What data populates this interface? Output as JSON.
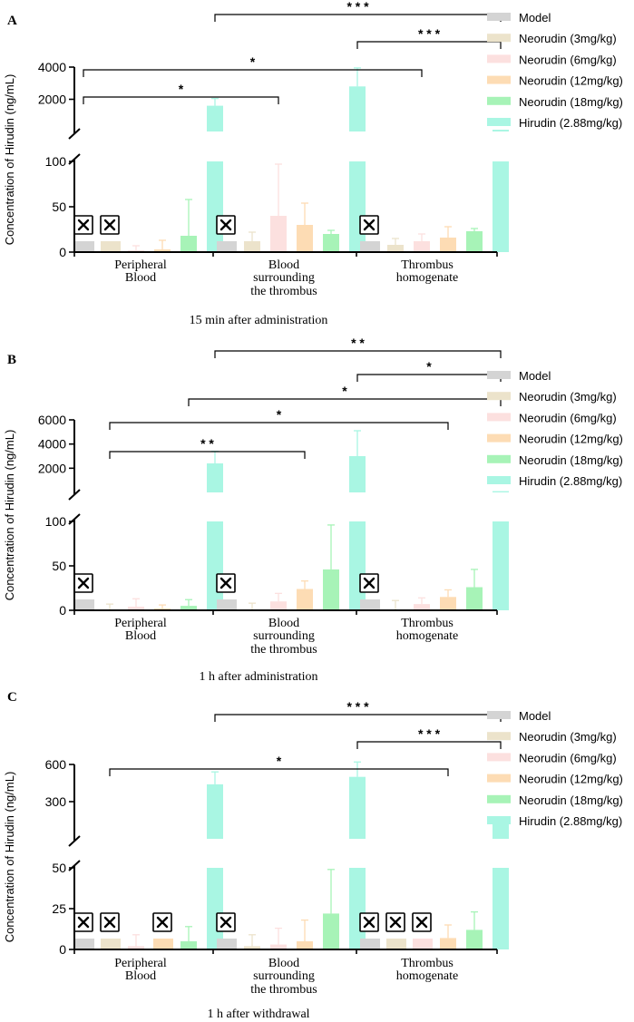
{
  "chart_data": [
    {
      "type": "bar",
      "panel_label": "A",
      "title": "15 min after administration",
      "ylabel": "Concentration of Hirudin  (ng/mL)",
      "categories": [
        "Peripheral|Blood",
        "Blood|surrounding|the thrombus",
        "Thrombus|homogenate"
      ],
      "lower_axis": {
        "range": [
          0,
          100
        ],
        "ticks": [
          0,
          50,
          100
        ]
      },
      "upper_axis": {
        "range": [
          0,
          4000
        ],
        "ticks": [
          2000,
          4000
        ]
      },
      "series": [
        {
          "name": "Model",
          "values": [
            null,
            null,
            null
          ],
          "errors": [
            0,
            0,
            0
          ]
        },
        {
          "name": "Neorudin (3mg/kg)",
          "values": [
            null,
            12,
            8
          ],
          "errors": [
            0,
            10,
            7
          ]
        },
        {
          "name": "Neorudin (6mg/kg)",
          "values": [
            2,
            40,
            12
          ],
          "errors": [
            5,
            57,
            8
          ]
        },
        {
          "name": "Neorudin (12mg/kg)",
          "values": [
            3,
            30,
            16
          ],
          "errors": [
            10,
            24,
            12
          ]
        },
        {
          "name": "Neorudin (18mg/kg)",
          "values": [
            18,
            20,
            23
          ],
          "errors": [
            40,
            4,
            3
          ]
        },
        {
          "name": "Hirudin (2.88mg/kg)",
          "values": [
            1600,
            2800,
            110
          ],
          "errors": [
            450,
            1150,
            0
          ]
        }
      ],
      "missing_markers": [
        [
          "Model",
          0
        ],
        [
          "Neorudin (3mg/kg)",
          0
        ],
        [
          "Model",
          1
        ],
        [
          "Model",
          2
        ]
      ],
      "significance": [
        {
          "from": "Model|0",
          "to": "Neorudin (6mg/kg)|1",
          "label": "*"
        },
        {
          "from": "Model|0",
          "to": "Neorudin (6mg/kg)|2",
          "label": "*"
        },
        {
          "from": "Hirudin (2.88mg/kg)|1",
          "to": "Hirudin (2.88mg/kg)|2",
          "label": "* * *"
        },
        {
          "from": "Hirudin (2.88mg/kg)|0",
          "to": "Hirudin (2.88mg/kg)|2",
          "label": "* * *"
        }
      ]
    },
    {
      "type": "bar",
      "panel_label": "B",
      "title": "1 h after administration",
      "ylabel": "Concentration of Hirudin  (ng/mL)",
      "categories": [
        "Peripheral|Blood",
        "Blood|surrounding|the thrombus",
        "Thrombus|homogenate"
      ],
      "lower_axis": {
        "range": [
          0,
          100
        ],
        "ticks": [
          0,
          50,
          100
        ]
      },
      "upper_axis": {
        "range": [
          0,
          6000
        ],
        "ticks": [
          2000,
          4000,
          6000
        ]
      },
      "series": [
        {
          "name": "Model",
          "values": [
            null,
            null,
            null
          ],
          "errors": [
            0,
            0,
            0
          ]
        },
        {
          "name": "Neorudin (3mg/kg)",
          "values": [
            1,
            1,
            1
          ],
          "errors": [
            6,
            7,
            10
          ]
        },
        {
          "name": "Neorudin (6mg/kg)",
          "values": [
            4,
            10,
            7
          ],
          "errors": [
            9,
            9,
            7
          ]
        },
        {
          "name": "Neorudin (12mg/kg)",
          "values": [
            2,
            24,
            15
          ],
          "errors": [
            4,
            9,
            8
          ]
        },
        {
          "name": "Neorudin (18mg/kg)",
          "values": [
            5,
            46,
            26
          ],
          "errors": [
            7,
            50,
            20
          ]
        },
        {
          "name": "Hirudin (2.88mg/kg)",
          "values": [
            2400,
            3000,
            105
          ],
          "errors": [
            1000,
            2100,
            0
          ]
        }
      ],
      "missing_markers": [
        [
          "Model",
          0
        ],
        [
          "Model",
          1
        ],
        [
          "Model",
          2
        ]
      ],
      "significance": [
        {
          "from": "Neorudin (3mg/kg)|0",
          "to": "Neorudin (12mg/kg)|1",
          "label": "* *"
        },
        {
          "from": "Neorudin (3mg/kg)|0",
          "to": "Neorudin (12mg/kg)|2",
          "label": "*"
        },
        {
          "from": "Neorudin (18mg/kg)|0",
          "to": "Hirudin (2.88mg/kg)|2",
          "label": "*"
        },
        {
          "from": "Hirudin (2.88mg/kg)|1",
          "to": "Hirudin (2.88mg/kg)|2",
          "label": "*"
        },
        {
          "from": "Hirudin (2.88mg/kg)|0",
          "to": "Hirudin (2.88mg/kg)|2",
          "label": "* *"
        }
      ]
    },
    {
      "type": "bar",
      "panel_label": "C",
      "title": "1 h after withdrawal",
      "ylabel": "Concentration of Hirudin  (ng/mL)",
      "categories": [
        "Peripheral|Blood",
        "Blood|surrounding|the thrombus",
        "Thrombus|homogenate"
      ],
      "lower_axis": {
        "range": [
          0,
          50
        ],
        "ticks": [
          0,
          25,
          50
        ]
      },
      "upper_axis": {
        "range": [
          0,
          600
        ],
        "ticks": [
          300,
          600
        ]
      },
      "series": [
        {
          "name": "Model",
          "values": [
            null,
            null,
            null
          ],
          "errors": [
            0,
            0,
            0
          ]
        },
        {
          "name": "Neorudin (3mg/kg)",
          "values": [
            null,
            2,
            null
          ],
          "errors": [
            0,
            7,
            0
          ]
        },
        {
          "name": "Neorudin (6mg/kg)",
          "values": [
            2,
            3,
            null
          ],
          "errors": [
            7,
            10,
            0
          ]
        },
        {
          "name": "Neorudin (12mg/kg)",
          "values": [
            null,
            5,
            7
          ],
          "errors": [
            0,
            13,
            8
          ]
        },
        {
          "name": "Neorudin (18mg/kg)",
          "values": [
            5,
            22,
            12
          ],
          "errors": [
            9,
            27,
            11
          ]
        },
        {
          "name": "Hirudin (2.88mg/kg)",
          "values": [
            440,
            500,
            160
          ],
          "errors": [
            100,
            120,
            0
          ]
        }
      ],
      "missing_markers": [
        [
          "Model",
          0
        ],
        [
          "Neorudin (3mg/kg)",
          0
        ],
        [
          "Neorudin (12mg/kg)",
          0
        ],
        [
          "Model",
          1
        ],
        [
          "Model",
          2
        ],
        [
          "Neorudin (3mg/kg)",
          2
        ],
        [
          "Neorudin (6mg/kg)",
          2
        ]
      ],
      "significance": [
        {
          "from": "Neorudin (3mg/kg)|0",
          "to": "Neorudin (12mg/kg)|2",
          "label": "*"
        },
        {
          "from": "Hirudin (2.88mg/kg)|1",
          "to": "Hirudin (2.88mg/kg)|2",
          "label": "* * *"
        },
        {
          "from": "Hirudin (2.88mg/kg)|0",
          "to": "Hirudin (2.88mg/kg)|2",
          "label": "* * *"
        }
      ]
    }
  ],
  "colors": {
    "Model": "#d4d4d4",
    "Neorudin (3mg/kg)": "#ece3cb",
    "Neorudin (6mg/kg)": "#fce0df",
    "Neorudin (12mg/kg)": "#fddcb4",
    "Neorudin (18mg/kg)": "#a7f3b7",
    "Hirudin (2.88mg/kg)": "#a9f6e3",
    "axis": "#000000"
  }
}
